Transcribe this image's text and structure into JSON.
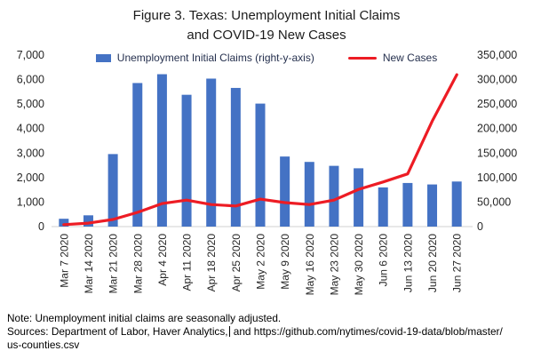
{
  "title": {
    "line1": "Figure 3. Texas: Unemployment Initial Claims",
    "line2": "and COVID-19 New Cases"
  },
  "legend": {
    "bars_label": "Unemployment Initial Claims (right-y-axis)",
    "line_label": "New Cases"
  },
  "colors": {
    "bar": "#4472c4",
    "line": "#ed1c24",
    "axis_line": "#d9d9d9",
    "text": "#262626"
  },
  "chart_data": {
    "type": "combo-bar-line",
    "title": "Figure 3. Texas: Unemployment Initial Claims and COVID-19 New Cases",
    "categories": [
      "Mar 7 2020",
      "Mar 14 2020",
      "Mar 21 2020",
      "Mar 28 2020",
      "Apr 4 2020",
      "Apr 11 2020",
      "Apr 18 2020",
      "Apr 25 2020",
      "May 2 2020",
      "May 9 2020",
      "May 16 2020",
      "May 23 2020",
      "May 30 2020",
      "Jun 6 2020",
      "Jun 13 2020",
      "Jun 20 2020",
      "Jun 27 2020"
    ],
    "series": [
      {
        "name": "Unemployment Initial Claims",
        "type": "bar",
        "axis": "right",
        "color": "#4472c4",
        "values": [
          16000,
          23000,
          148000,
          293000,
          311000,
          269000,
          302000,
          283000,
          251000,
          143000,
          132000,
          124000,
          119000,
          80000,
          89000,
          86000,
          92000
        ]
      },
      {
        "name": "New Cases",
        "type": "line",
        "axis": "left",
        "color": "#ed1c24",
        "values": [
          80,
          140,
          290,
          580,
          940,
          1080,
          900,
          840,
          1120,
          980,
          900,
          1080,
          1520,
          1820,
          2150,
          4300,
          6200
        ]
      }
    ],
    "left_axis": {
      "min": 0,
      "max": 7000,
      "step": 1000
    },
    "right_axis": {
      "min": 0,
      "max": 350000,
      "step": 50000
    },
    "grid": false,
    "legend_position": "top"
  },
  "footer": {
    "note": "Note: Unemployment initial claims are seasonally adjusted.",
    "sources_before_cursor": "Sources: Department of Labor, Haver Analytics,",
    "sources_after_cursor": " and https://github.com/nytimes/covid-19-data/blob/master/",
    "sources_line2": "us-counties.csv"
  }
}
